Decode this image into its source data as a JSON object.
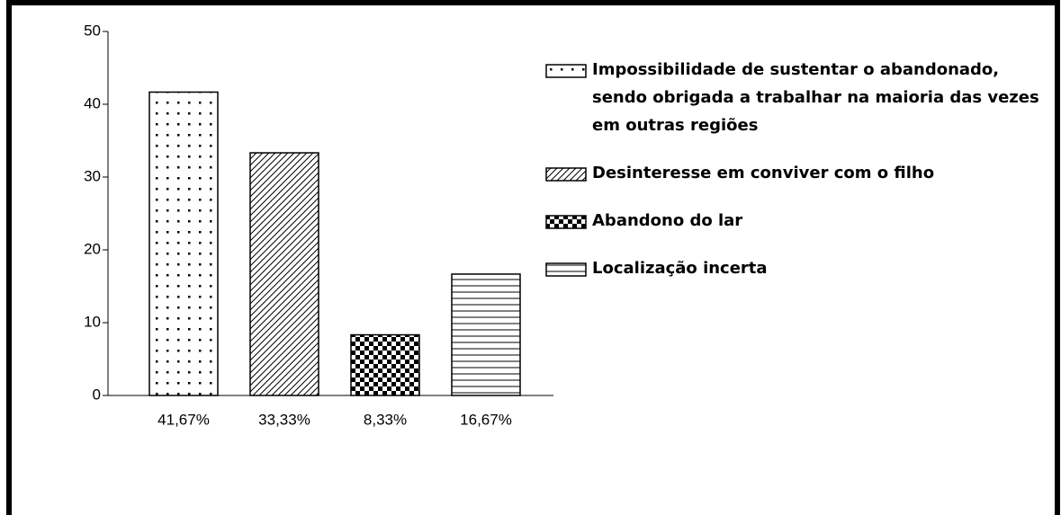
{
  "chart_data": {
    "type": "bar",
    "categories": [
      "Impossibilidade de sustentar o abandonado, sendo obrigada a trabalhar na maioria das vezes em outras regiões",
      "Desinteresse em conviver com o filho",
      "Abandono do lar",
      "Localização incerta"
    ],
    "values": [
      41.67,
      33.33,
      8.33,
      16.67
    ],
    "value_labels": [
      "41,67%",
      "33,33%",
      "8,33%",
      "16,67%"
    ],
    "patterns": [
      "dots",
      "diagonal",
      "checker",
      "horizontal"
    ],
    "color": "#000000",
    "ylim": [
      0,
      50
    ],
    "yticks": [
      0,
      10,
      20,
      30,
      40,
      50
    ],
    "grid": false,
    "legend": "right"
  }
}
